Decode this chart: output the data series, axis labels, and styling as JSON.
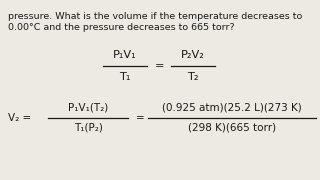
{
  "bg_color": "#edeae4",
  "text_color": "#1a1a1a",
  "line1": "pressure. What is the volume if the temperature decreases to",
  "line2": "0.00°C and the pressure decreases to 665 torr?",
  "formula1_num": "P₁V₁",
  "formula1_den": "T₁",
  "equals1": "=",
  "formula2_num": "P₂V₂",
  "formula2_den": "T₂",
  "lhs_top": "P₁V₁(T₂)",
  "lhs_bot": "T₁(P₂)",
  "rhs_top": "(0.925 atm)(25.2 L)(273 K)",
  "rhs_bot": "(298 K)(665 torr)",
  "v2_label": "V₂ =",
  "equals2": "=",
  "font_size_body": 6.8,
  "font_size_eq": 8.2,
  "font_size_eq2": 7.5
}
